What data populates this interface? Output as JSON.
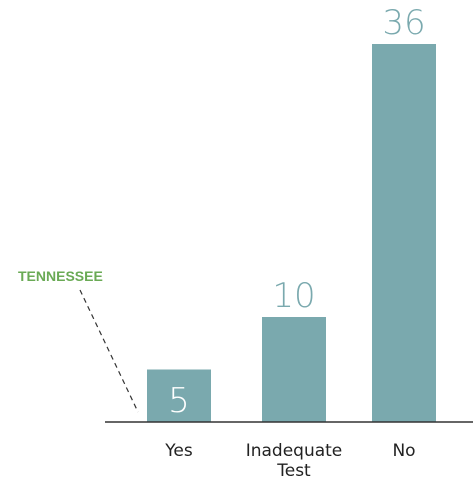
{
  "chart_data": {
    "type": "bar",
    "categories": [
      "Yes",
      "Inadequate Test",
      "No"
    ],
    "category_lines": [
      [
        "Yes"
      ],
      [
        "Inadequate",
        "Test"
      ],
      [
        "No"
      ]
    ],
    "values": [
      5,
      10,
      36
    ],
    "value_labels": [
      "5",
      "10",
      "36"
    ],
    "title": "",
    "xlabel": "",
    "ylabel": "",
    "ylim": [
      0,
      36
    ],
    "grid": false,
    "annotation": {
      "text": "TENNESSEE",
      "points_to": "Yes"
    }
  },
  "colors": {
    "bar": "#7aa9ae",
    "value_label_inside": "#ffffff",
    "value_label_above": "#7aa9ae",
    "annotation": "#6aaa55",
    "axis": "#333333",
    "leader_line": "#333333"
  }
}
